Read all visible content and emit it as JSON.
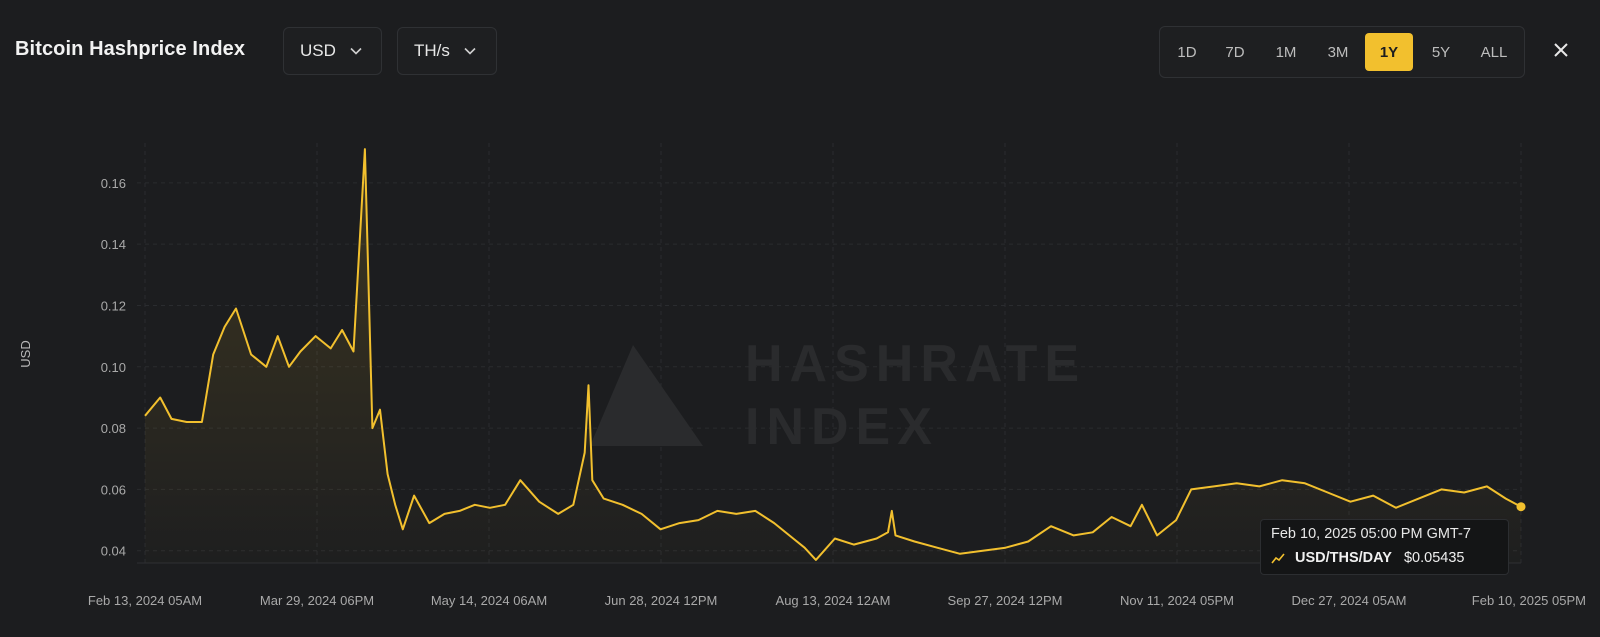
{
  "header": {
    "title": "Bitcoin Hashprice Index",
    "currency_select": "USD",
    "unit_select": "TH/s",
    "ranges": [
      "1D",
      "7D",
      "1M",
      "3M",
      "1Y",
      "5Y",
      "ALL"
    ],
    "active_range": "1Y"
  },
  "watermark": {
    "line1": "HASHRATE",
    "line2": "INDEX"
  },
  "tooltip": {
    "date": "Feb 10, 2025 05:00 PM GMT-7",
    "series_label": "USD/THS/DAY",
    "value": "$0.05435"
  },
  "colors": {
    "accent": "#f2c02e",
    "background": "#1c1d1f",
    "grid": "#2a2c2f"
  },
  "chart_data": {
    "type": "area",
    "ylabel": "USD",
    "ylim": [
      0.036,
      0.173
    ],
    "yticks": [
      0.04,
      0.06,
      0.08,
      0.1,
      0.12,
      0.14,
      0.16
    ],
    "ytick_labels": [
      "0.04",
      "0.06",
      "0.08",
      "0.10",
      "0.12",
      "0.14",
      "0.16"
    ],
    "xticks": [
      "Feb 13, 2024 05AM",
      "Mar 29, 2024 06PM",
      "May 14, 2024 06AM",
      "Jun 28, 2024 12PM",
      "Aug 13, 2024 12AM",
      "Sep 27, 2024 12PM",
      "Nov 11, 2024 05PM",
      "Dec 27, 2024 05AM",
      "Feb 10, 2025 05PM"
    ],
    "x": [
      "2024-02-13",
      "2024-02-17",
      "2024-02-20",
      "2024-02-24",
      "2024-02-28",
      "2024-03-02",
      "2024-03-05",
      "2024-03-08",
      "2024-03-12",
      "2024-03-16",
      "2024-03-19",
      "2024-03-22",
      "2024-03-25",
      "2024-03-29",
      "2024-04-02",
      "2024-04-05",
      "2024-04-08",
      "2024-04-11",
      "2024-04-13",
      "2024-04-15",
      "2024-04-17",
      "2024-04-19",
      "2024-04-21",
      "2024-04-24",
      "2024-04-28",
      "2024-05-02",
      "2024-05-06",
      "2024-05-10",
      "2024-05-14",
      "2024-05-18",
      "2024-05-22",
      "2024-05-27",
      "2024-06-01",
      "2024-06-05",
      "2024-06-08",
      "2024-06-09",
      "2024-06-10",
      "2024-06-13",
      "2024-06-18",
      "2024-06-23",
      "2024-06-28",
      "2024-07-03",
      "2024-07-08",
      "2024-07-13",
      "2024-07-18",
      "2024-07-23",
      "2024-07-28",
      "2024-08-02",
      "2024-08-05",
      "2024-08-08",
      "2024-08-13",
      "2024-08-18",
      "2024-08-24",
      "2024-08-27",
      "2024-08-28",
      "2024-08-29",
      "2024-09-03",
      "2024-09-09",
      "2024-09-15",
      "2024-09-21",
      "2024-09-27",
      "2024-10-03",
      "2024-10-09",
      "2024-10-15",
      "2024-10-20",
      "2024-10-25",
      "2024-10-30",
      "2024-11-02",
      "2024-11-06",
      "2024-11-11",
      "2024-11-15",
      "2024-11-21",
      "2024-11-27",
      "2024-12-03",
      "2024-12-09",
      "2024-12-15",
      "2024-12-21",
      "2024-12-27",
      "2025-01-02",
      "2025-01-08",
      "2025-01-14",
      "2025-01-20",
      "2025-01-26",
      "2025-02-01",
      "2025-02-06",
      "2025-02-10"
    ],
    "series": [
      {
        "values": [
          0.084,
          0.09,
          0.083,
          0.082,
          0.082,
          0.104,
          0.113,
          0.119,
          0.104,
          0.1,
          0.11,
          0.1,
          0.105,
          0.11,
          0.106,
          0.112,
          0.105,
          0.171,
          0.08,
          0.086,
          0.065,
          0.055,
          0.047,
          0.058,
          0.049,
          0.052,
          0.053,
          0.055,
          0.054,
          0.055,
          0.063,
          0.056,
          0.052,
          0.055,
          0.072,
          0.094,
          0.063,
          0.057,
          0.055,
          0.052,
          0.047,
          0.049,
          0.05,
          0.053,
          0.052,
          0.053,
          0.049,
          0.044,
          0.041,
          0.037,
          0.044,
          0.042,
          0.044,
          0.046,
          0.053,
          0.045,
          0.043,
          0.041,
          0.039,
          0.04,
          0.041,
          0.043,
          0.048,
          0.045,
          0.046,
          0.051,
          0.048,
          0.055,
          0.045,
          0.05,
          0.06,
          0.061,
          0.062,
          0.061,
          0.063,
          0.062,
          0.059,
          0.056,
          0.058,
          0.054,
          0.057,
          0.06,
          0.059,
          0.061,
          0.057,
          0.05435
        ]
      }
    ]
  }
}
